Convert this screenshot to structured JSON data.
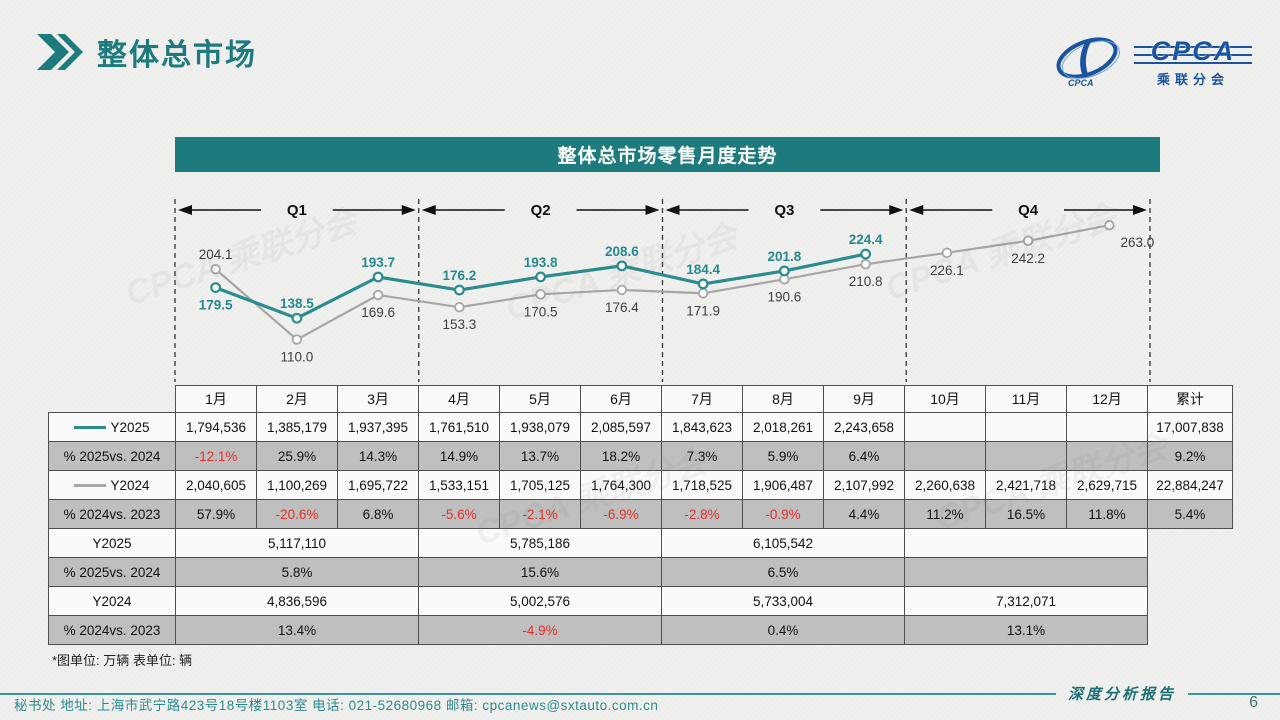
{
  "page": {
    "title": "整体总市场",
    "page_number": "6"
  },
  "logo": {
    "acronym": "CPCA",
    "cn": "乘联分会",
    "mark_text": "CPCA"
  },
  "chart": {
    "title": "整体总市场零售月度走势",
    "unit_note": "*图单位: 万辆   表单位: 辆"
  },
  "chart_data": {
    "type": "line",
    "x": [
      "1月",
      "2月",
      "3月",
      "4月",
      "5月",
      "6月",
      "7月",
      "8月",
      "9月",
      "10月",
      "11月",
      "12月"
    ],
    "quarters": [
      "Q1",
      "Q2",
      "Q3",
      "Q4"
    ],
    "ylim": [
      100,
      270
    ],
    "legend_position": "table-left-column",
    "grid": false,
    "series": [
      {
        "name": "Y2025",
        "color": "#2b8c8f",
        "label_color": "#26898e",
        "values": [
          179.5,
          138.5,
          193.7,
          176.2,
          193.8,
          208.6,
          184.4,
          201.8,
          224.4,
          null,
          null,
          null
        ]
      },
      {
        "name": "Y2024",
        "color": "#a6a6a6",
        "label_color": "#3f3f3f",
        "values": [
          204.1,
          110.0,
          169.6,
          153.3,
          170.5,
          176.4,
          171.9,
          190.6,
          210.8,
          226.1,
          242.2,
          263.0
        ]
      }
    ]
  },
  "table": {
    "total_header": "累计",
    "month_rows": [
      {
        "label": "Y2025",
        "swatch": "#2b8c8f",
        "shaded": false,
        "cells": [
          "1,794,536",
          "1,385,179",
          "1,937,395",
          "1,761,510",
          "1,938,079",
          "2,085,597",
          "1,843,623",
          "2,018,261",
          "2,243,658",
          "",
          "",
          ""
        ],
        "total": "17,007,838"
      },
      {
        "label": "% 2025vs. 2024",
        "swatch": null,
        "shaded": true,
        "cells": [
          "-12.1%",
          "25.9%",
          "14.3%",
          "14.9%",
          "13.7%",
          "18.2%",
          "7.3%",
          "5.9%",
          "6.4%",
          "",
          "",
          ""
        ],
        "total": "9.2%"
      },
      {
        "label": "Y2024",
        "swatch": "#a6a6a6",
        "shaded": false,
        "cells": [
          "2,040,605",
          "1,100,269",
          "1,695,722",
          "1,533,151",
          "1,705,125",
          "1,764,300",
          "1,718,525",
          "1,906,487",
          "2,107,992",
          "2,260,638",
          "2,421,718",
          "2,629,715"
        ],
        "total": "22,884,247"
      },
      {
        "label": "% 2024vs. 2023",
        "swatch": null,
        "shaded": true,
        "cells": [
          "57.9%",
          "-20.6%",
          "6.8%",
          "-5.6%",
          "-2.1%",
          "-6.9%",
          "-2.8%",
          "-0.9%",
          "4.4%",
          "11.2%",
          "16.5%",
          "11.8%"
        ],
        "total": "5.4%"
      }
    ],
    "quarter_rows": [
      {
        "label": "Y2025",
        "shaded": false,
        "cells": [
          "5,117,110",
          "5,785,186",
          "6,105,542",
          ""
        ]
      },
      {
        "label": "% 2025vs. 2024",
        "shaded": true,
        "cells": [
          "5.8%",
          "15.6%",
          "6.5%",
          ""
        ]
      },
      {
        "label": "Y2024",
        "shaded": false,
        "cells": [
          "4,836,596",
          "5,002,576",
          "5,733,004",
          "7,312,071"
        ]
      },
      {
        "label": "% 2024vs. 2023",
        "shaded": true,
        "cells": [
          "13.4%",
          "-4.9%",
          "0.4%",
          "13.1%"
        ]
      }
    ]
  },
  "footer": {
    "left": "秘书处   地址: 上海市武宁路423号18号楼1103室  电话: 021-52680968   邮箱: cpcanews@sxtauto.com.cn",
    "report_label": "深度分析报告",
    "page": "6"
  },
  "watermark": "CPCA 乘联分会"
}
